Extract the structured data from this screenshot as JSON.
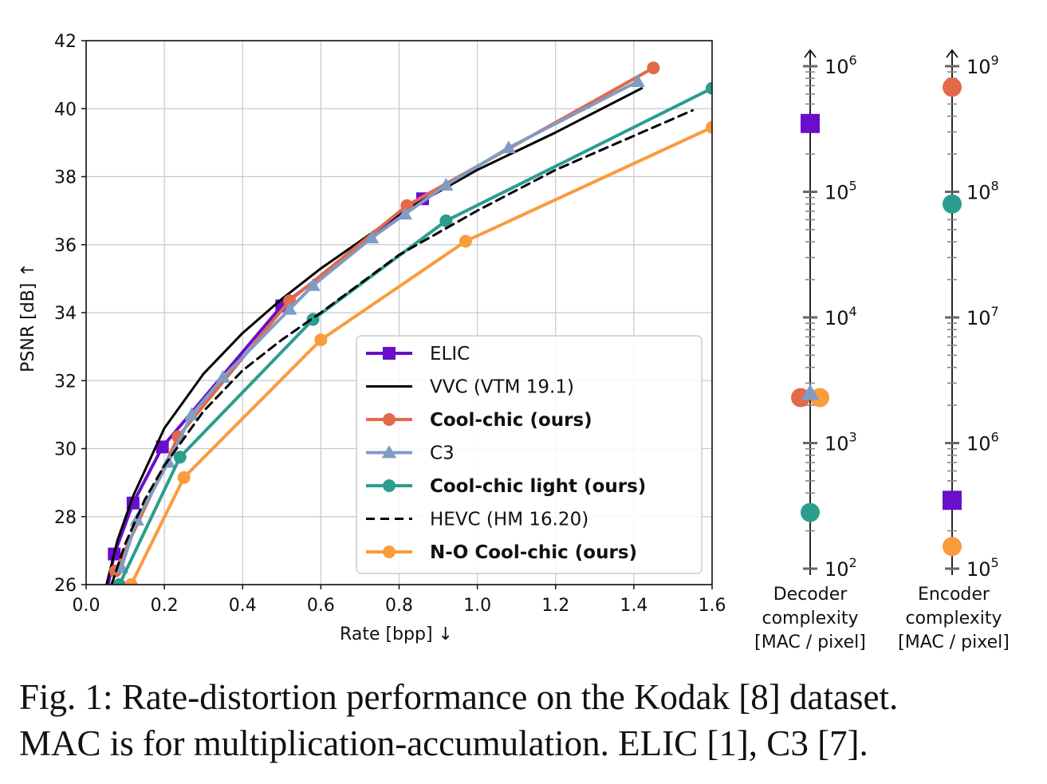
{
  "chart_data": [
    {
      "type": "line",
      "xlabel": "Rate [bpp]  ↓",
      "ylabel": "PSNR [dB]  ↑",
      "xlim": [
        0.0,
        1.6
      ],
      "ylim": [
        26,
        42
      ],
      "xticks": [
        "0.0",
        "0.2",
        "0.4",
        "0.6",
        "0.8",
        "1.0",
        "1.2",
        "1.4",
        "1.6"
      ],
      "yticks": [
        "26",
        "28",
        "30",
        "32",
        "34",
        "36",
        "38",
        "40",
        "42"
      ],
      "grid": true,
      "legend_position": "lower right",
      "series": [
        {
          "name": "ELIC",
          "color": "#6a0dcc",
          "marker": "square",
          "dashed": false,
          "bold": false,
          "x": [
            0.048,
            0.072,
            0.12,
            0.195,
            0.5,
            0.86
          ],
          "y": [
            25.5,
            26.9,
            28.4,
            30.05,
            34.2,
            37.35
          ]
        },
        {
          "name": "VVC (VTM 19.1)",
          "color": "#000000",
          "marker": "none",
          "dashed": false,
          "bold": false,
          "x": [
            0.05,
            0.08,
            0.12,
            0.2,
            0.3,
            0.4,
            0.5,
            0.6,
            0.8,
            1.0,
            1.2,
            1.42
          ],
          "y": [
            25.9,
            27.3,
            28.6,
            30.6,
            32.2,
            33.4,
            34.4,
            35.3,
            36.9,
            38.2,
            39.3,
            40.6
          ]
        },
        {
          "name": "Cool-chic (ours)",
          "color": "#e2694a",
          "marker": "circle",
          "dashed": false,
          "bold": true,
          "x": [
            0.075,
            0.235,
            0.52,
            0.82,
            1.45
          ],
          "y": [
            26.4,
            30.35,
            34.35,
            37.15,
            41.2
          ]
        },
        {
          "name": "C3",
          "color": "#7f9cc4",
          "marker": "triangle",
          "dashed": false,
          "bold": false,
          "x": [
            0.09,
            0.13,
            0.21,
            0.27,
            0.35,
            0.52,
            0.58,
            0.73,
            0.815,
            0.92,
            1.08,
            1.41
          ],
          "y": [
            26.5,
            27.9,
            29.6,
            31.0,
            32.1,
            34.1,
            34.8,
            36.2,
            36.9,
            37.75,
            38.85,
            40.8
          ]
        },
        {
          "name": "Cool-chic light (ours)",
          "color": "#2a9d8f",
          "marker": "circle",
          "dashed": false,
          "bold": true,
          "x": [
            0.085,
            0.24,
            0.58,
            0.92,
            1.6
          ],
          "y": [
            26.0,
            29.75,
            33.8,
            36.7,
            40.6
          ]
        },
        {
          "name": "HEVC (HM 16.20)",
          "color": "#000000",
          "marker": "none",
          "dashed": true,
          "bold": false,
          "x": [
            0.065,
            0.1,
            0.15,
            0.2,
            0.3,
            0.4,
            0.5,
            0.6,
            0.8,
            1.0,
            1.2,
            1.4,
            1.55
          ],
          "y": [
            26.0,
            27.2,
            28.5,
            29.5,
            31.1,
            32.3,
            33.2,
            34.0,
            35.7,
            37.0,
            38.2,
            39.2,
            39.95
          ]
        },
        {
          "name": "N-O Cool-chic (ours)",
          "color": "#fa9b3c",
          "marker": "circle",
          "dashed": false,
          "bold": true,
          "x": [
            0.115,
            0.25,
            0.6,
            0.97,
            1.6
          ],
          "y": [
            26.0,
            29.15,
            33.2,
            36.1,
            39.45
          ]
        }
      ]
    },
    {
      "type": "scatter",
      "scale": "log",
      "label_lines": [
        "Decoder",
        "complexity",
        "[MAC / pixel]"
      ],
      "ylim": [
        100,
        1000000
      ],
      "ticks": [
        {
          "base": "10",
          "exp": "2"
        },
        {
          "base": "10",
          "exp": "3"
        },
        {
          "base": "10",
          "exp": "4"
        },
        {
          "base": "10",
          "exp": "5"
        },
        {
          "base": "10",
          "exp": "6"
        }
      ],
      "points": [
        {
          "series": "ELIC",
          "value": 350000
        },
        {
          "series": "Cool-chic (ours)",
          "value": 2300
        },
        {
          "series": "N-O Cool-chic (ours)",
          "value": 2300
        },
        {
          "series": "C3",
          "value": 2500
        },
        {
          "series": "Cool-chic light (ours)",
          "value": 280
        }
      ]
    },
    {
      "type": "scatter",
      "scale": "log",
      "label_lines": [
        "Encoder",
        "complexity",
        "[MAC / pixel]"
      ],
      "ylim": [
        100000,
        1000000000
      ],
      "ticks": [
        {
          "base": "10",
          "exp": "5"
        },
        {
          "base": "10",
          "exp": "6"
        },
        {
          "base": "10",
          "exp": "7"
        },
        {
          "base": "10",
          "exp": "8"
        },
        {
          "base": "10",
          "exp": "9"
        }
      ],
      "points": [
        {
          "series": "Cool-chic (ours)",
          "value": 680000000
        },
        {
          "series": "Cool-chic light (ours)",
          "value": 80000000
        },
        {
          "series": "ELIC",
          "value": 350000
        },
        {
          "series": "N-O Cool-chic (ours)",
          "value": 150000
        }
      ]
    }
  ],
  "caption": {
    "line1": "Fig. 1: Rate-distortion performance on the Kodak [8] dataset.",
    "line2": "MAC is for multiplication-accumulation. ELIC [1], C3 [7]."
  }
}
